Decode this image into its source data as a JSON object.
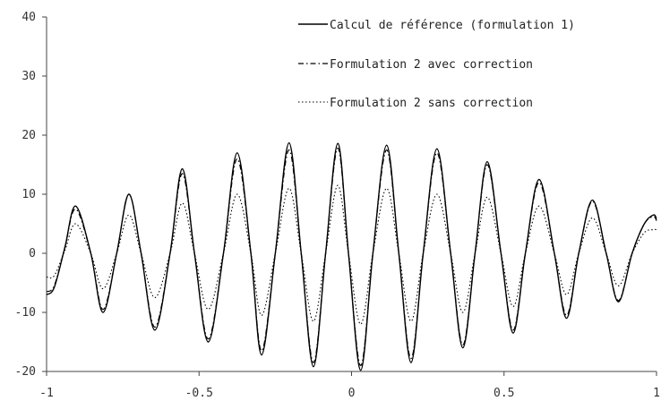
{
  "chart_data": {
    "type": "line",
    "title": "",
    "xlabel": "",
    "ylabel": "",
    "xlim": [
      -1,
      1
    ],
    "ylim": [
      -20,
      40
    ],
    "xticks": [
      -1,
      -0.5,
      0,
      0.5,
      1
    ],
    "xtick_labels": [
      "-1",
      "-0.5",
      "0",
      "0.5",
      "1"
    ],
    "yticks": [
      -20,
      -10,
      0,
      10,
      20,
      30,
      40
    ],
    "ytick_labels": [
      "-20",
      "-10",
      "0",
      "10",
      "20",
      "30",
      "40"
    ],
    "grid": false,
    "legend_position": "top-right",
    "series": [
      {
        "name": "Calcul de référence (formulation 1)",
        "style": "solid",
        "color": "#000000",
        "x": [
          -1.0,
          -0.975,
          -0.94,
          -0.905,
          -0.855,
          -0.815,
          -0.77,
          -0.73,
          -0.69,
          -0.645,
          -0.595,
          -0.555,
          -0.515,
          -0.47,
          -0.42,
          -0.375,
          -0.33,
          -0.295,
          -0.25,
          -0.205,
          -0.165,
          -0.125,
          -0.085,
          -0.045,
          -0.01,
          0.03,
          0.07,
          0.115,
          0.155,
          0.195,
          0.235,
          0.28,
          0.325,
          0.365,
          0.405,
          0.445,
          0.49,
          0.53,
          0.57,
          0.615,
          0.665,
          0.705,
          0.745,
          0.79,
          0.835,
          0.875,
          0.92,
          0.96,
          0.99,
          1.0
        ],
        "y": [
          -7,
          -5.8,
          1,
          8,
          0,
          -10,
          0,
          10,
          0,
          -13,
          0,
          14.3,
          0,
          -15,
          0,
          17,
          0,
          -17.2,
          0,
          18.7,
          0,
          -19.2,
          0,
          18.6,
          0,
          -19.8,
          0,
          18.3,
          0,
          -18.5,
          0,
          17.7,
          0,
          -16,
          0,
          15.5,
          0,
          -13.5,
          0,
          12.5,
          0,
          -11,
          0,
          9,
          0,
          -8.2,
          0,
          5,
          6.5,
          5.8
        ]
      },
      {
        "name": "Formulation 2 avec correction",
        "style": "dashdot",
        "color": "#000000",
        "x": [
          -1.0,
          -0.975,
          -0.94,
          -0.905,
          -0.855,
          -0.815,
          -0.77,
          -0.73,
          -0.69,
          -0.645,
          -0.595,
          -0.555,
          -0.515,
          -0.47,
          -0.42,
          -0.375,
          -0.33,
          -0.295,
          -0.25,
          -0.205,
          -0.165,
          -0.125,
          -0.085,
          -0.045,
          -0.01,
          0.03,
          0.07,
          0.115,
          0.155,
          0.195,
          0.235,
          0.28,
          0.325,
          0.365,
          0.405,
          0.445,
          0.49,
          0.53,
          0.57,
          0.615,
          0.665,
          0.705,
          0.745,
          0.79,
          0.835,
          0.875,
          0.92,
          0.96,
          0.99,
          1.0
        ],
        "y": [
          -6.5,
          -5.5,
          1,
          7.5,
          0,
          -9.5,
          0,
          10,
          0,
          -12.5,
          0,
          13.5,
          0,
          -14.5,
          0,
          16,
          0,
          -16.5,
          0,
          17.5,
          0,
          -18.5,
          0,
          17.8,
          0,
          -19,
          0,
          17.5,
          0,
          -17.8,
          0,
          17,
          0,
          -15.5,
          0,
          15,
          0,
          -13,
          0,
          12,
          0,
          -10.5,
          0,
          8.8,
          0,
          -8,
          0,
          5,
          6.2,
          5.5
        ]
      },
      {
        "name": "Formulation 2 sans correction",
        "style": "dotted",
        "color": "#000000",
        "x": [
          -1.0,
          -0.975,
          -0.94,
          -0.905,
          -0.855,
          -0.815,
          -0.77,
          -0.73,
          -0.69,
          -0.645,
          -0.595,
          -0.555,
          -0.515,
          -0.47,
          -0.42,
          -0.375,
          -0.33,
          -0.295,
          -0.25,
          -0.205,
          -0.165,
          -0.125,
          -0.085,
          -0.045,
          -0.01,
          0.03,
          0.07,
          0.115,
          0.155,
          0.195,
          0.235,
          0.28,
          0.325,
          0.365,
          0.405,
          0.445,
          0.49,
          0.53,
          0.57,
          0.615,
          0.665,
          0.705,
          0.745,
          0.79,
          0.835,
          0.875,
          0.92,
          0.96,
          0.99,
          1.0
        ],
        "y": [
          -4,
          -3.8,
          0.5,
          5,
          0,
          -6,
          0,
          6.5,
          0,
          -7.5,
          0,
          8.5,
          0,
          -9.5,
          0,
          10,
          0,
          -10.5,
          0,
          11,
          0,
          -11.5,
          0,
          11.5,
          0,
          -12,
          0,
          11,
          0,
          -11.5,
          0,
          10,
          0,
          -10,
          0,
          9.5,
          0,
          -9,
          0,
          8,
          0,
          -7,
          0,
          6,
          0,
          -5.5,
          0,
          3.5,
          4,
          4
        ]
      }
    ]
  }
}
